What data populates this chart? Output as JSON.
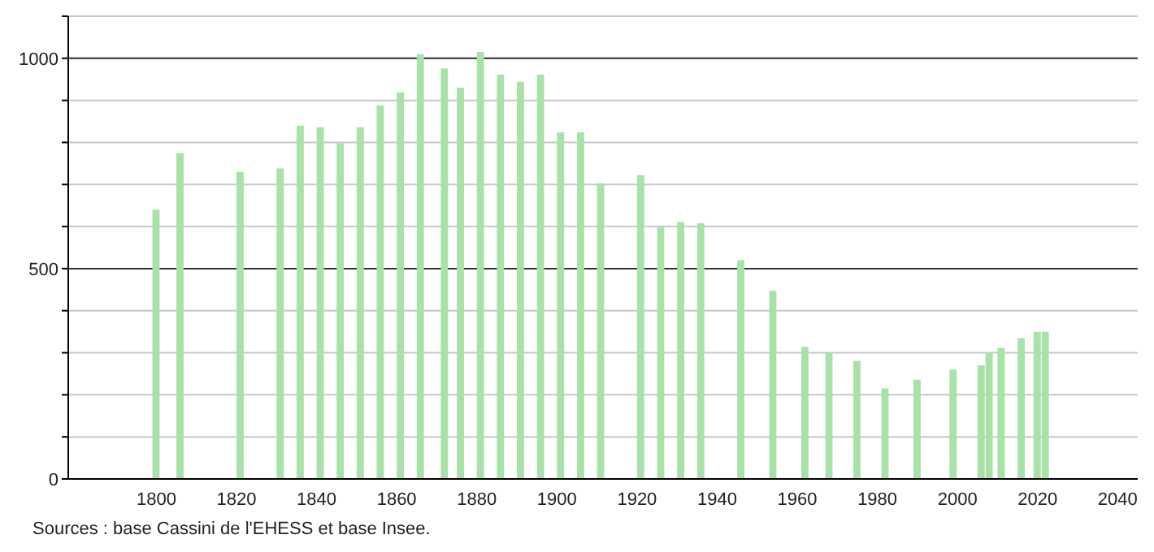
{
  "chart_data": {
    "type": "bar",
    "color": "#a8e2a8",
    "x": [
      1800,
      1806,
      1821,
      1831,
      1836,
      1841,
      1846,
      1851,
      1856,
      1861,
      1866,
      1872,
      1876,
      1881,
      1886,
      1891,
      1896,
      1901,
      1906,
      1911,
      1921,
      1926,
      1931,
      1936,
      1946,
      1954,
      1962,
      1968,
      1975,
      1982,
      1990,
      1999,
      2006,
      2008,
      2011,
      2016,
      2020,
      2022
    ],
    "values": [
      640,
      775,
      730,
      738,
      840,
      836,
      798,
      836,
      888,
      919,
      1010,
      976,
      930,
      1015,
      961,
      944,
      961,
      824,
      824,
      703,
      722,
      598,
      611,
      608,
      520,
      447,
      314,
      300,
      281,
      215,
      236,
      260,
      270,
      300,
      311,
      335,
      350,
      350
    ],
    "xlim": [
      1778,
      2045
    ],
    "xticks": [
      1800,
      1820,
      1840,
      1860,
      1880,
      1900,
      1920,
      1940,
      1960,
      1980,
      2000,
      2020,
      2040
    ],
    "ylim": [
      0,
      1100
    ],
    "yticks": [
      0,
      {
        "value": 100,
        "label": null
      },
      {
        "value": 200,
        "label": null
      },
      {
        "value": 300,
        "label": null
      },
      {
        "value": 400,
        "label": null
      },
      500,
      {
        "value": 600,
        "label": null
      },
      {
        "value": 700,
        "label": null
      },
      {
        "value": 800,
        "label": null
      },
      {
        "value": 900,
        "label": null
      },
      1000,
      {
        "value": 1100,
        "label": null
      }
    ],
    "grid": "y",
    "annotations": [
      "Sources : base Cassini de l'EHESS et base Insee."
    ]
  }
}
